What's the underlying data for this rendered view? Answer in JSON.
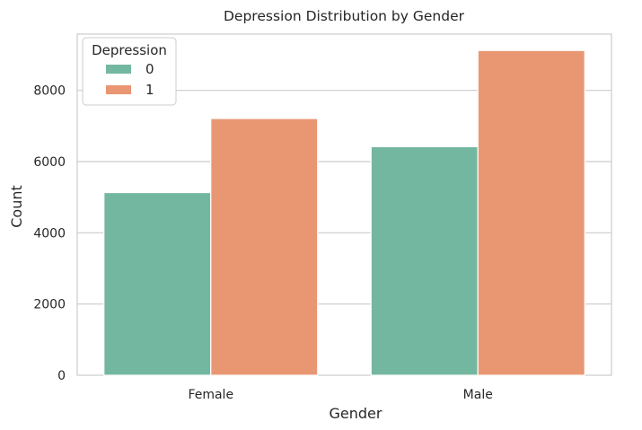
{
  "chart_data": {
    "type": "bar",
    "title": "Depression Distribution by Gender",
    "xlabel": "Gender",
    "ylabel": "Count",
    "categories": [
      "Female",
      "Male"
    ],
    "series": [
      {
        "name": "0",
        "values": [
          5130,
          6420
        ],
        "color": "#74b7a0"
      },
      {
        "name": "1",
        "values": [
          7210,
          9120
        ],
        "color": "#e99673"
      }
    ],
    "ylim": [
      0,
      9580
    ],
    "yticks": [
      0,
      2000,
      4000,
      6000,
      8000
    ],
    "grid": "horizontal",
    "legend": {
      "title": "Depression",
      "placement": "top-left"
    }
  }
}
